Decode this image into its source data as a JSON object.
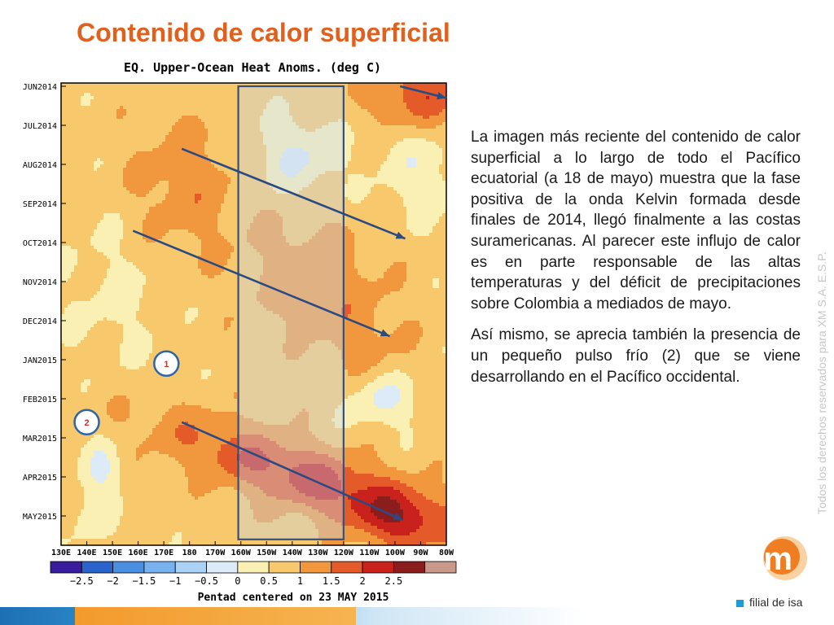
{
  "slide": {
    "title": "Contenido de calor superficial",
    "paragraphs": [
      "La imagen más reciente del contenido de calor superficial a lo largo de todo el Pacífico ecuatorial (a 18 de mayo) muestra que la fase positiva de la onda Kelvin formada desde finales de 2014, llegó finalmente a las costas suramericanas. Al parecer este influjo de calor es en parte responsable de las altas temperaturas y del déficit de precipitaciones sobre Colombia a mediados de mayo.",
      "Así mismo, se aprecia también la presencia de un pequeño pulso frío (2) que se viene desarrollando en el Pacífico occidental."
    ],
    "side_note": "Todos los derechos reservados para XM S.A. E.S.P.",
    "brand": "filial de isa",
    "logo_text": "xm",
    "colors": {
      "title": "#e2601e",
      "logo_orange": "#ef7d22",
      "brand_blue": "#1f9ad7"
    }
  },
  "chart_data": {
    "type": "heatmap",
    "title": "EQ. Upper-Ocean Heat Anoms. (deg C)",
    "xlabel": "Pentad centered on 23 MAY 2015",
    "x_ticks": [
      "130E",
      "140E",
      "150E",
      "160E",
      "170E",
      "180",
      "170W",
      "160W",
      "150W",
      "140W",
      "130W",
      "120W",
      "110W",
      "100W",
      "90W",
      "80W"
    ],
    "y_ticks": [
      "JUN2014",
      "JUL2014",
      "AUG2014",
      "SEP2014",
      "OCT2014",
      "NOV2014",
      "DEC2014",
      "JAN2015",
      "FEB2015",
      "MAR2015",
      "APR2015",
      "MAY2015"
    ],
    "colorbar": {
      "labels": [
        "−2.5",
        "−2",
        "−1.5",
        "−1",
        "−0.5",
        "0",
        "0.5",
        "1",
        "1.5",
        "2",
        "2.5"
      ],
      "colors": [
        "#3a1d9e",
        "#2b63cc",
        "#4a8fe0",
        "#78b2ee",
        "#a9d2f5",
        "#dcebf7",
        "#fbf0b4",
        "#f7c86c",
        "#f1983e",
        "#e45a28",
        "#c9211c",
        "#8b1d1d",
        "#c99a8c"
      ]
    },
    "annotations": [
      {
        "label": "1",
        "lon": 171,
        "month": 7.1
      },
      {
        "label": "2",
        "lon": 140,
        "month": 8.6
      }
    ],
    "arrows": [
      {
        "from": [
          177,
          1.6
        ],
        "to": [
          264,
          3.9
        ]
      },
      {
        "from": [
          158,
          3.7
        ],
        "to": [
          258,
          6.4
        ]
      },
      {
        "from": [
          177,
          8.6
        ],
        "to": [
          263,
          11.1
        ]
      },
      {
        "from": [
          262,
          0.0
        ],
        "to": [
          280,
          0.3
        ]
      }
    ],
    "highlight_box": {
      "lon_range": [
        199,
        240
      ],
      "month_range": [
        0,
        11.6
      ]
    },
    "x_range": [
      130,
      280
    ],
    "y_range": [
      "JUN2014",
      "MAY2015"
    ],
    "grid": false
  }
}
